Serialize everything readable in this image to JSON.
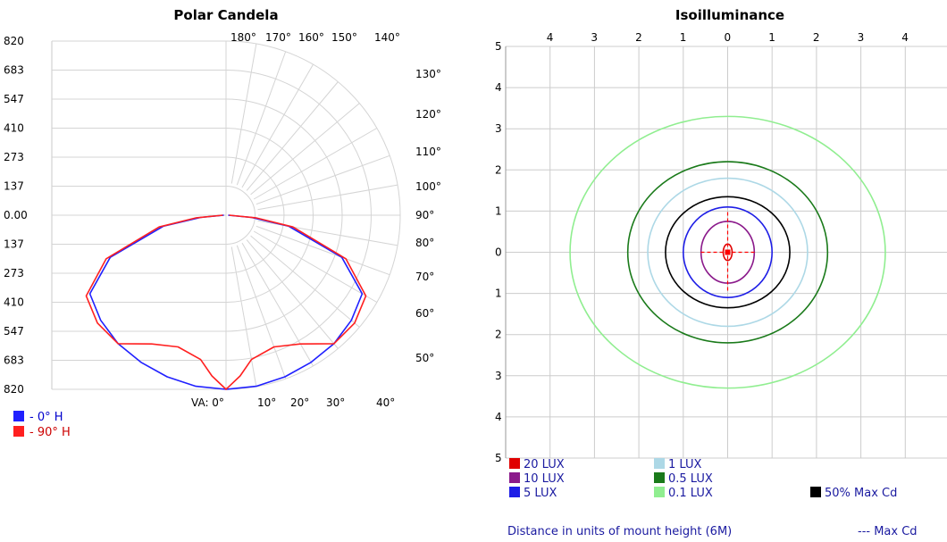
{
  "chart_data": [
    {
      "type": "polar",
      "title": "Polar Candela",
      "r_tick_labels": [
        "820",
        "683",
        "547",
        "410",
        "273",
        "137",
        "0.00",
        "137",
        "273",
        "410",
        "547",
        "683",
        "820"
      ],
      "r_max": 820,
      "angle_labels_top": [
        "180°",
        "170°",
        "160°",
        "150°",
        "140°"
      ],
      "angle_labels_right": [
        "130°",
        "120°",
        "110°",
        "100°",
        "90°",
        "80°",
        "70°",
        "60°",
        "50°"
      ],
      "angle_labels_bottom": [
        "VA: 0°",
        "10°",
        "20°",
        "30°",
        "40°"
      ],
      "grid": true,
      "legend_placement": "bottom-left",
      "series": [
        {
          "name": "- 0° H",
          "color": "#2020ff",
          "angle_deg": [
            0,
            10,
            20,
            30,
            40,
            50,
            60,
            70,
            80,
            85,
            90
          ],
          "candela": [
            820,
            818,
            810,
            800,
            790,
            770,
            740,
            580,
            300,
            120,
            10
          ]
        },
        {
          "name": "- 90° H",
          "color": "#ff2020",
          "angle_deg": [
            0,
            5,
            10,
            20,
            30,
            40,
            50,
            60,
            70,
            80,
            85,
            90
          ],
          "candela": [
            820,
            760,
            690,
            660,
            700,
            790,
            790,
            760,
            600,
            320,
            140,
            15
          ]
        }
      ]
    },
    {
      "type": "contour",
      "title": "Isoilluminance",
      "x_tick_labels": [
        "4",
        "3",
        "2",
        "1",
        "0",
        "1",
        "2",
        "3",
        "4"
      ],
      "y_tick_labels": [
        "5",
        "4",
        "3",
        "2",
        "1",
        "0",
        "1",
        "2",
        "3",
        "4",
        "5"
      ],
      "xlim": [
        -5,
        5
      ],
      "ylim": [
        -5,
        5
      ],
      "grid": true,
      "xlabel": "Distance in units of mount height (6M)",
      "contours": [
        {
          "name": "20  LUX",
          "color": "#e00000",
          "rx": 0.1,
          "ry": 0.2
        },
        {
          "name": "10  LUX",
          "color": "#8b1a8b",
          "rx": 0.6,
          "ry": 0.75
        },
        {
          "name": "5  LUX",
          "color": "#1e1ee6",
          "rx": 1.0,
          "ry": 1.1
        },
        {
          "name": "1  LUX",
          "color": "#add8e6",
          "rx": 1.8,
          "ry": 1.8
        },
        {
          "name": "0.5  LUX",
          "color": "#1a7a1a",
          "rx": 2.25,
          "ry": 2.2
        },
        {
          "name": "0.1  LUX",
          "color": "#90ee90",
          "rx": 3.55,
          "ry": 3.3
        }
      ],
      "max_cd_50": {
        "name": "50% Max Cd",
        "color": "#000000",
        "rx": 1.4,
        "ry": 1.35
      },
      "max_cd": {
        "name": "--- Max Cd",
        "color": "#ff0000"
      }
    }
  ]
}
